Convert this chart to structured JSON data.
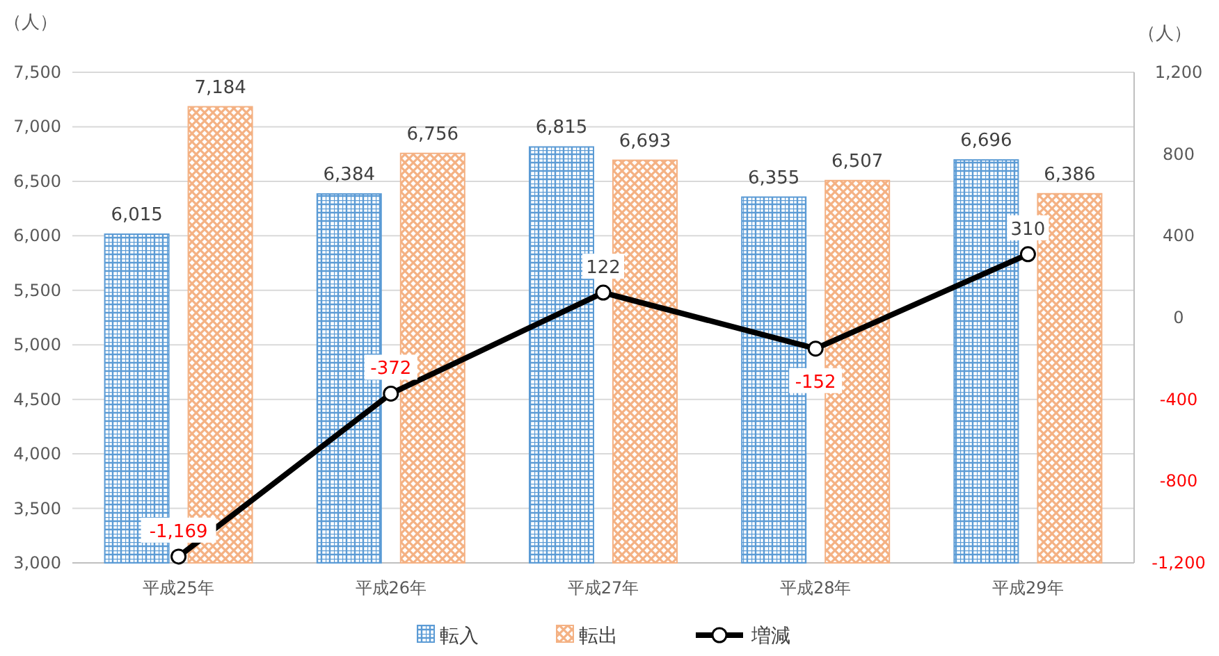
{
  "chart_data": {
    "type": "bar",
    "ylabel": "（人）",
    "y2label": "（人）",
    "categories": [
      "平成25年",
      "平成26年",
      "平成27年",
      "平成28年",
      "平成29年"
    ],
    "series": [
      {
        "name": "転入",
        "color": "#5b9bd5",
        "values": [
          6015,
          6384,
          6815,
          6355,
          6696
        ],
        "value_labels": [
          "6,015",
          "6,384",
          "6,815",
          "6,355",
          "6,696"
        ]
      },
      {
        "name": "転出",
        "color": "#f4b183",
        "values": [
          7184,
          6756,
          6693,
          6507,
          6386
        ],
        "value_labels": [
          "7,184",
          "6,756",
          "6,693",
          "6,507",
          "6,386"
        ]
      },
      {
        "name": "増減",
        "type": "line",
        "axis": "y2",
        "color": "#000000",
        "marker": "circle",
        "values": [
          -1169,
          -372,
          122,
          -152,
          310
        ],
        "value_labels": [
          "-1,169",
          "-372",
          "122",
          "-152",
          "310"
        ]
      }
    ],
    "ylim": [
      3000,
      7500
    ],
    "yticks": [
      {
        "value": 3000,
        "label": "3,000"
      },
      {
        "value": 3500,
        "label": "3,500"
      },
      {
        "value": 4000,
        "label": "4,000"
      },
      {
        "value": 4500,
        "label": "4,500"
      },
      {
        "value": 5000,
        "label": "5,000"
      },
      {
        "value": 5500,
        "label": "5,500"
      },
      {
        "value": 6000,
        "label": "6,000"
      },
      {
        "value": 6500,
        "label": "6,500"
      },
      {
        "value": 7000,
        "label": "7,000"
      },
      {
        "value": 7500,
        "label": "7,500"
      }
    ],
    "y2lim": [
      -1200,
      1200
    ],
    "y2ticks": [
      {
        "value": -1200,
        "label": "-1,200"
      },
      -800,
      -400,
      0,
      400,
      800,
      {
        "value": 1200,
        "label": "1,200"
      }
    ],
    "grid": "y",
    "legend": "bottom"
  }
}
